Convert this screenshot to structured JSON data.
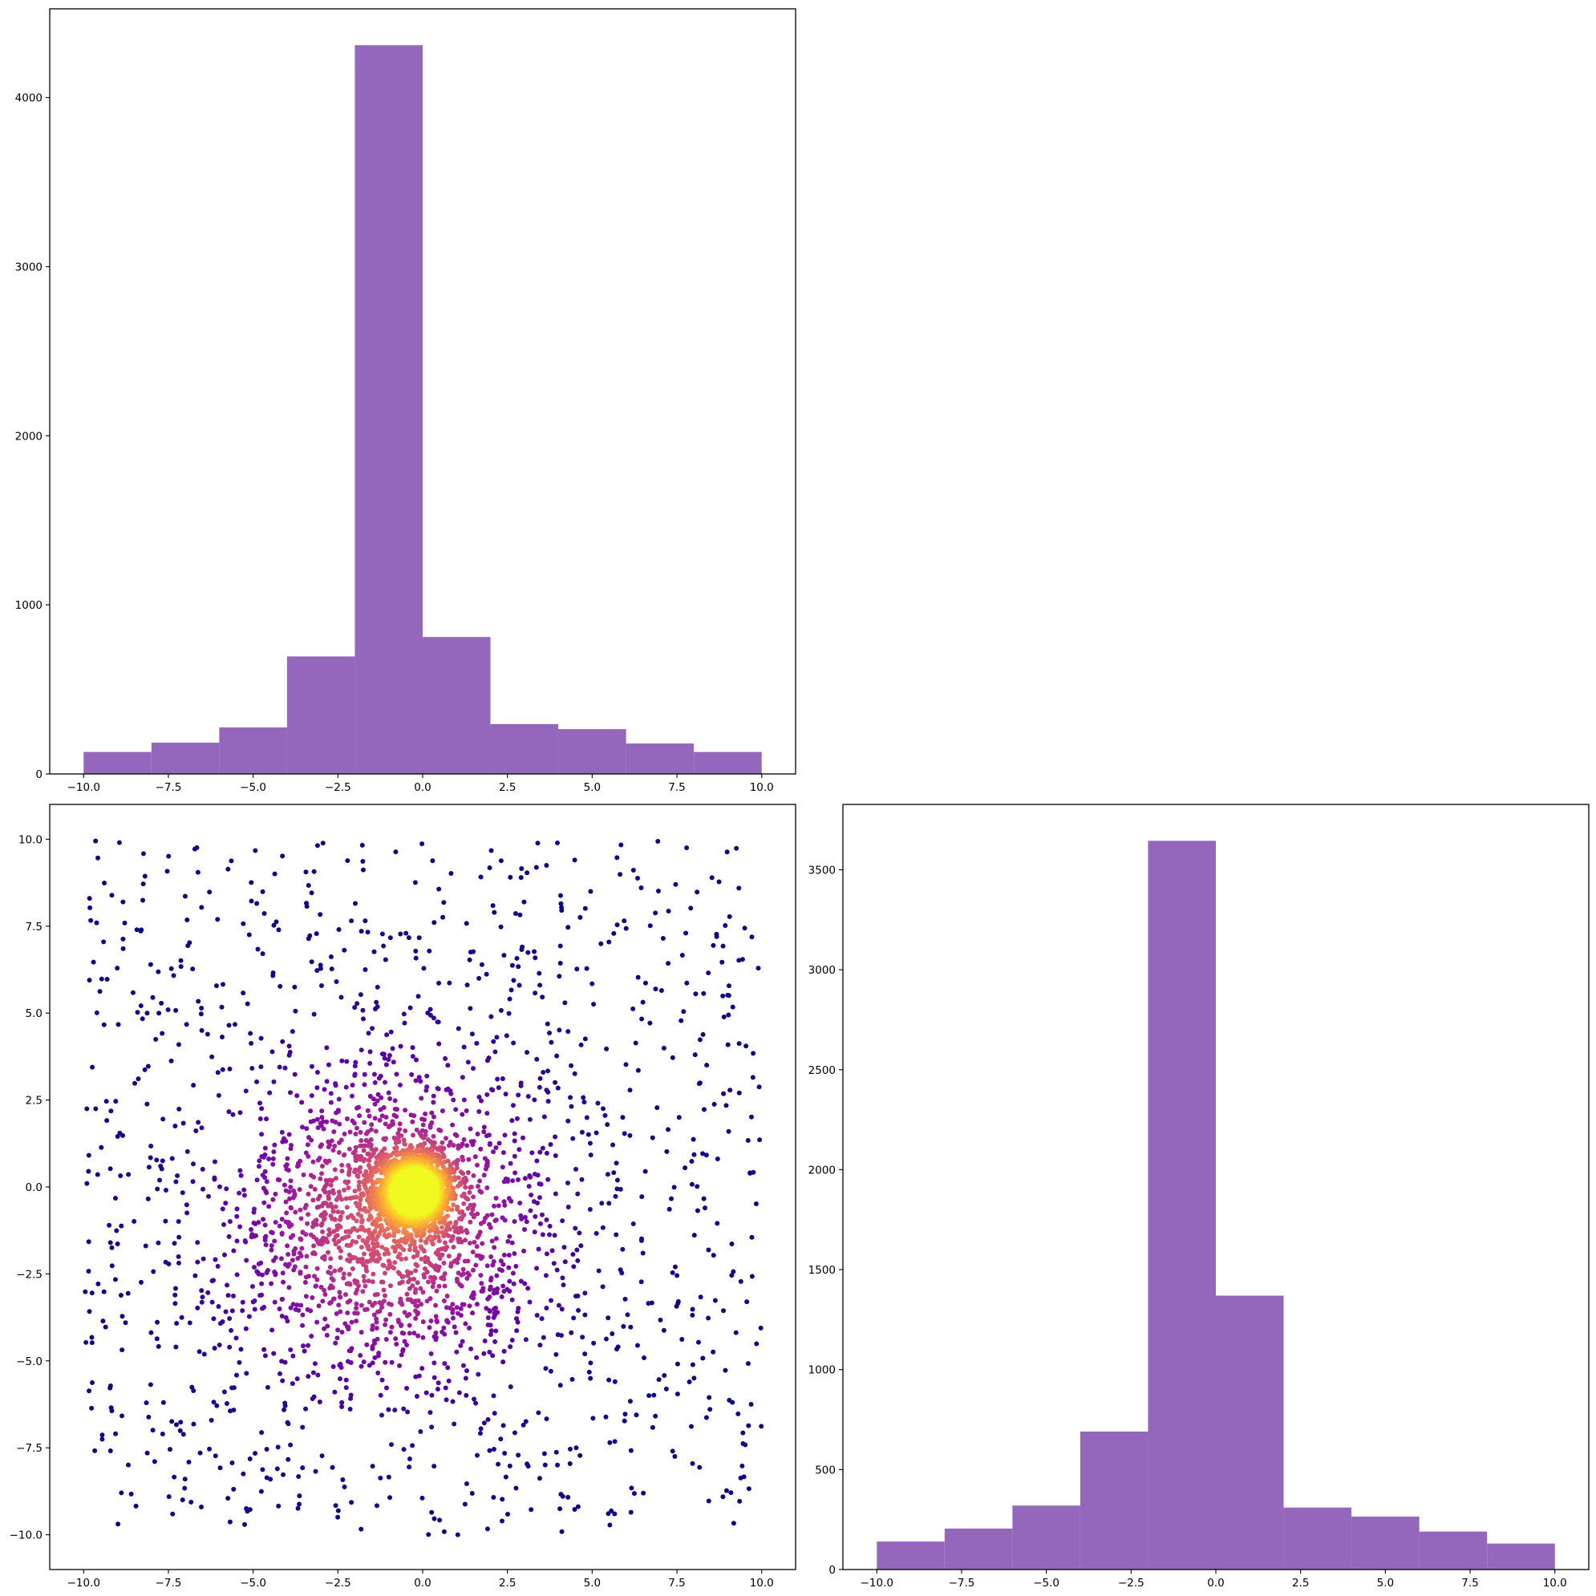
{
  "colors": {
    "bar_fill": "#9467bd",
    "axis": "#000000",
    "background": "#ffffff",
    "scatter_colormap": [
      "#0d0887",
      "#5c01a6",
      "#9c179e",
      "#cc4778",
      "#ed7953",
      "#fdb42f",
      "#f0f921"
    ]
  },
  "chart_data": [
    {
      "id": "top-histogram",
      "type": "bar",
      "title": "",
      "xlabel": "",
      "ylabel": "",
      "bin_edges": [
        -10,
        -8,
        -6,
        -4,
        -2,
        0,
        2,
        4,
        6,
        8,
        10
      ],
      "values": [
        130,
        185,
        275,
        695,
        4310,
        810,
        295,
        265,
        180,
        130
      ],
      "xlim": [
        -11,
        11
      ],
      "ylim": [
        0,
        4525
      ],
      "xticks": [
        -10,
        -7.5,
        -5,
        -2.5,
        0,
        2.5,
        5,
        7.5,
        10
      ],
      "xtick_labels": [
        "−10.0",
        "−7.5",
        "−5.0",
        "−2.5",
        "0.0",
        "2.5",
        "5.0",
        "7.5",
        "10.0"
      ],
      "yticks": [
        0,
        1000,
        2000,
        3000,
        4000
      ],
      "ytick_labels": [
        "0",
        "1000",
        "2000",
        "3000",
        "4000"
      ],
      "grid": false
    },
    {
      "id": "scatter",
      "type": "scatter",
      "title": "",
      "xlabel": "",
      "ylabel": "",
      "xlim": [
        -11,
        11
      ],
      "ylim": [
        -11,
        11
      ],
      "xticks": [
        -10,
        -7.5,
        -5,
        -2.5,
        0,
        2.5,
        5,
        7.5,
        10
      ],
      "xtick_labels": [
        "−10.0",
        "−7.5",
        "−5.0",
        "−2.5",
        "0.0",
        "2.5",
        "5.0",
        "7.5",
        "10.0"
      ],
      "yticks": [
        -10,
        -7.5,
        -5,
        -2.5,
        0,
        2.5,
        5,
        7.5,
        10
      ],
      "ytick_labels": [
        "−10.0",
        "−7.5",
        "−5.0",
        "−2.5",
        "0.0",
        "2.5",
        "5.0",
        "7.5",
        "10.0"
      ],
      "color_encoding": "point density",
      "colormap": "plasma",
      "grid": false,
      "points": {
        "description_note": "",
        "components": [
          {
            "kind": "uniform",
            "x_range": [
              -10,
              10
            ],
            "y_range": [
              -10,
              10
            ],
            "count": 1100
          },
          {
            "kind": "gaussian",
            "center": [
              -1,
              -1
            ],
            "sd": 2.2,
            "count": 1500
          },
          {
            "kind": "gaussian",
            "center": [
              -0.3,
              -0.1
            ],
            "sd": 0.55,
            "count": 1800
          }
        ]
      },
      "grid_lines": false
    },
    {
      "id": "right-histogram",
      "type": "bar",
      "title": "",
      "xlabel": "",
      "ylabel": "",
      "bin_edges": [
        -10,
        -8,
        -6,
        -4,
        -2,
        0,
        2,
        4,
        6,
        8,
        10
      ],
      "values": [
        140,
        205,
        320,
        690,
        3645,
        1370,
        310,
        265,
        190,
        130
      ],
      "xlim": [
        -11,
        11
      ],
      "ylim": [
        0,
        3827
      ],
      "xticks": [
        -10,
        -7.5,
        -5,
        -2.5,
        0,
        2.5,
        5,
        7.5,
        10
      ],
      "xtick_labels": [
        "−10.0",
        "−7.5",
        "−5.0",
        "−2.5",
        "0.0",
        "2.5",
        "5.0",
        "7.5",
        "10.0"
      ],
      "yticks": [
        0,
        500,
        1000,
        1500,
        2000,
        2500,
        3000,
        3500
      ],
      "ytick_labels": [
        "0",
        "500",
        "1000",
        "1500",
        "2000",
        "2500",
        "3000",
        "3500"
      ],
      "grid": false
    }
  ]
}
